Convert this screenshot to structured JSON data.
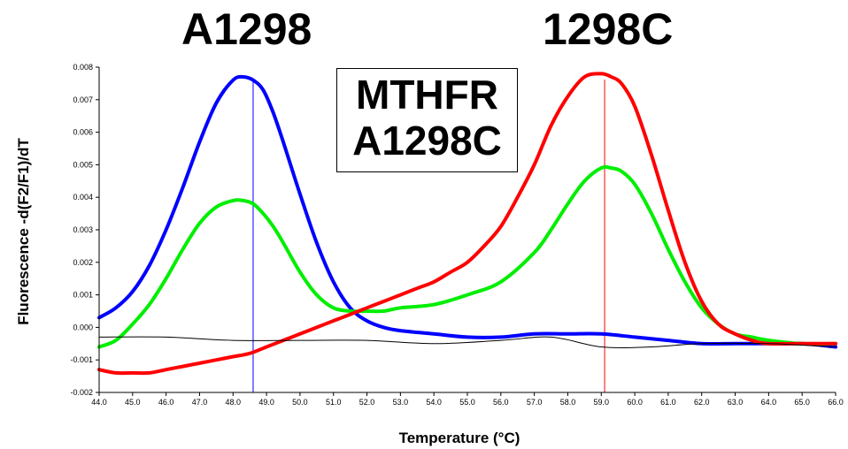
{
  "chart_data": {
    "type": "line",
    "xlabel": "Temperature (°C)",
    "ylabel": "Fluorescence -d(F2/F1)/dT",
    "xlim": [
      44.0,
      66.0
    ],
    "ylim": [
      -0.002,
      0.008
    ],
    "x_ticks": [
      "44.0",
      "45.0",
      "46.0",
      "47.0",
      "48.0",
      "49.0",
      "50.0",
      "51.0",
      "52.0",
      "53.0",
      "54.0",
      "55.0",
      "56.0",
      "57.0",
      "58.0",
      "59.0",
      "60.0",
      "61.0",
      "62.0",
      "63.0",
      "64.0",
      "65.0",
      "66.0"
    ],
    "y_ticks": [
      "-0.002",
      "-0.001",
      "0.000",
      "0.001",
      "0.002",
      "0.003",
      "0.004",
      "0.005",
      "0.006",
      "0.007",
      "0.008"
    ],
    "annotations": {
      "left_peak": "A1298",
      "right_peak": "1298C",
      "title_line1": "MTHFR",
      "title_line2": "A1298C"
    },
    "vlines": [
      {
        "x": 48.6,
        "color": "#0000ff"
      },
      {
        "x": 59.1,
        "color": "#ff0000"
      }
    ],
    "series": [
      {
        "color": "#0000ff",
        "width": 4,
        "x": [
          44.0,
          44.5,
          45.0,
          45.5,
          46.0,
          46.5,
          47.0,
          47.5,
          48.0,
          48.3,
          48.6,
          48.9,
          49.2,
          49.5,
          50.0,
          50.5,
          51.0,
          51.5,
          52.0,
          52.5,
          53.0,
          54.0,
          55.0,
          56.0,
          57.0,
          58.0,
          59.0,
          60.0,
          61.0,
          62.0,
          63.0,
          64.0,
          65.0,
          66.0
        ],
        "y": [
          0.0003,
          0.0006,
          0.0011,
          0.0019,
          0.003,
          0.0043,
          0.0057,
          0.0069,
          0.0076,
          0.0077,
          0.0076,
          0.0073,
          0.0066,
          0.0057,
          0.0041,
          0.0026,
          0.0014,
          0.0006,
          0.0002,
          0.0,
          -0.0001,
          -0.0002,
          -0.0003,
          -0.0003,
          -0.0002,
          -0.0002,
          -0.0002,
          -0.0003,
          -0.0004,
          -0.0005,
          -0.0005,
          -0.0005,
          -0.0005,
          -0.0006
        ]
      },
      {
        "color": "#00ee00",
        "width": 4,
        "x": [
          44.0,
          44.5,
          45.0,
          45.5,
          46.0,
          46.5,
          47.0,
          47.5,
          48.0,
          48.3,
          48.6,
          48.9,
          49.2,
          49.5,
          50.0,
          50.5,
          51.0,
          51.5,
          52.0,
          52.5,
          53.0,
          54.0,
          55.0,
          56.0,
          57.0,
          57.5,
          58.0,
          58.5,
          59.0,
          59.3,
          59.6,
          60.0,
          60.5,
          61.0,
          61.5,
          62.0,
          62.5,
          63.0,
          63.5,
          64.0,
          65.0,
          66.0
        ],
        "y": [
          -0.0006,
          -0.0004,
          0.0001,
          0.0007,
          0.0015,
          0.0024,
          0.0032,
          0.0037,
          0.0039,
          0.0039,
          0.0038,
          0.0035,
          0.0031,
          0.0026,
          0.0017,
          0.001,
          0.0006,
          0.0005,
          0.0005,
          0.0005,
          0.0006,
          0.0007,
          0.001,
          0.0014,
          0.0023,
          0.003,
          0.0038,
          0.0045,
          0.0049,
          0.0049,
          0.0048,
          0.0044,
          0.0035,
          0.0024,
          0.0014,
          0.0006,
          0.0001,
          -0.0002,
          -0.0003,
          -0.0004,
          -0.0005,
          -0.0005
        ]
      },
      {
        "color": "#ff0000",
        "width": 4,
        "x": [
          44.0,
          44.5,
          45.0,
          45.5,
          46.0,
          46.5,
          47.0,
          47.5,
          48.0,
          48.5,
          49.0,
          49.5,
          50.0,
          50.5,
          51.0,
          51.5,
          52.0,
          52.5,
          53.0,
          53.5,
          54.0,
          54.5,
          55.0,
          55.5,
          56.0,
          56.5,
          57.0,
          57.5,
          58.0,
          58.5,
          59.0,
          59.3,
          59.6,
          60.0,
          60.5,
          61.0,
          61.5,
          62.0,
          62.5,
          63.0,
          63.5,
          64.0,
          65.0,
          66.0
        ],
        "y": [
          -0.0013,
          -0.0014,
          -0.0014,
          -0.0014,
          -0.0013,
          -0.0012,
          -0.0011,
          -0.001,
          -0.0009,
          -0.0008,
          -0.0006,
          -0.0004,
          -0.0002,
          0.0,
          0.0002,
          0.0004,
          0.0006,
          0.0008,
          0.001,
          0.0012,
          0.0014,
          0.0017,
          0.002,
          0.0025,
          0.0031,
          0.004,
          0.005,
          0.0062,
          0.0071,
          0.0077,
          0.0078,
          0.0077,
          0.0075,
          0.0068,
          0.0053,
          0.0036,
          0.002,
          0.0008,
          0.0001,
          -0.0002,
          -0.0004,
          -0.0005,
          -0.0005,
          -0.0005
        ]
      },
      {
        "color": "#000000",
        "width": 1,
        "x": [
          44.0,
          46.0,
          48.0,
          50.0,
          52.0,
          54.0,
          56.0,
          57.5,
          59.0,
          60.5,
          62.0,
          64.0,
          66.0
        ],
        "y": [
          -0.0003,
          -0.0003,
          -0.0004,
          -0.0004,
          -0.0004,
          -0.0005,
          -0.0004,
          -0.0003,
          -0.0006,
          -0.0006,
          -0.0005,
          -0.0005,
          -0.0006
        ]
      }
    ]
  }
}
